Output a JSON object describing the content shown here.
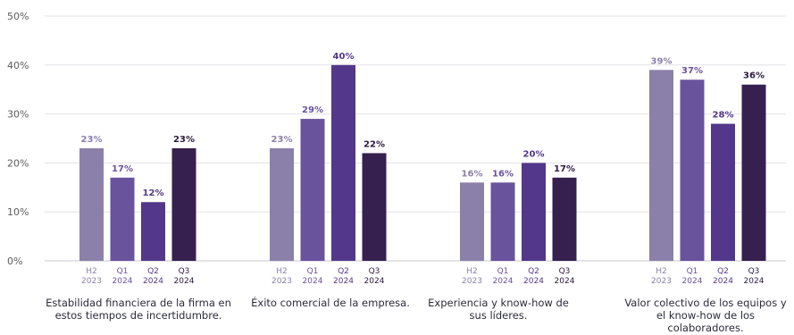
{
  "chart_data": {
    "type": "bar",
    "y_axis": {
      "min": 0,
      "max": 50,
      "step": 10,
      "format": "percent"
    },
    "grid": true,
    "series_colors": [
      "#8b80a9",
      "#6a539d",
      "#53378a",
      "#35204f"
    ],
    "groups": [
      {
        "label": "Estabilidad financiera de la firma en estos tiempos de incertidumbre.",
        "bars": [
          {
            "period": "H2",
            "year": "2023",
            "value": 23
          },
          {
            "period": "Q1",
            "year": "2024",
            "value": 17
          },
          {
            "period": "Q2",
            "year": "2024",
            "value": 12
          },
          {
            "period": "Q3",
            "year": "2024",
            "value": 23
          }
        ]
      },
      {
        "label": "Éxito comercial de la empresa.",
        "bars": [
          {
            "period": "H2",
            "year": "2023",
            "value": 23
          },
          {
            "period": "Q1",
            "year": "2024",
            "value": 29
          },
          {
            "period": "Q2",
            "year": "2024",
            "value": 40
          },
          {
            "period": "Q3",
            "year": "2024",
            "value": 22
          }
        ]
      },
      {
        "label": "Experiencia y know-how de sus líderes.",
        "bars": [
          {
            "period": "H2",
            "year": "2023",
            "value": 16
          },
          {
            "period": "Q1",
            "year": "2024",
            "value": 16
          },
          {
            "period": "Q2",
            "year": "2024",
            "value": 20
          },
          {
            "period": "Q3",
            "year": "2024",
            "value": 17
          }
        ]
      },
      {
        "label": "Valor colectivo de los equipos y el know-how de los colaboradores.",
        "bars": [
          {
            "period": "H2",
            "year": "2023",
            "value": 39
          },
          {
            "period": "Q1",
            "year": "2024",
            "value": 37
          },
          {
            "period": "Q2",
            "year": "2024",
            "value": 28
          },
          {
            "period": "Q3",
            "year": "2024",
            "value": 36
          }
        ]
      }
    ]
  }
}
